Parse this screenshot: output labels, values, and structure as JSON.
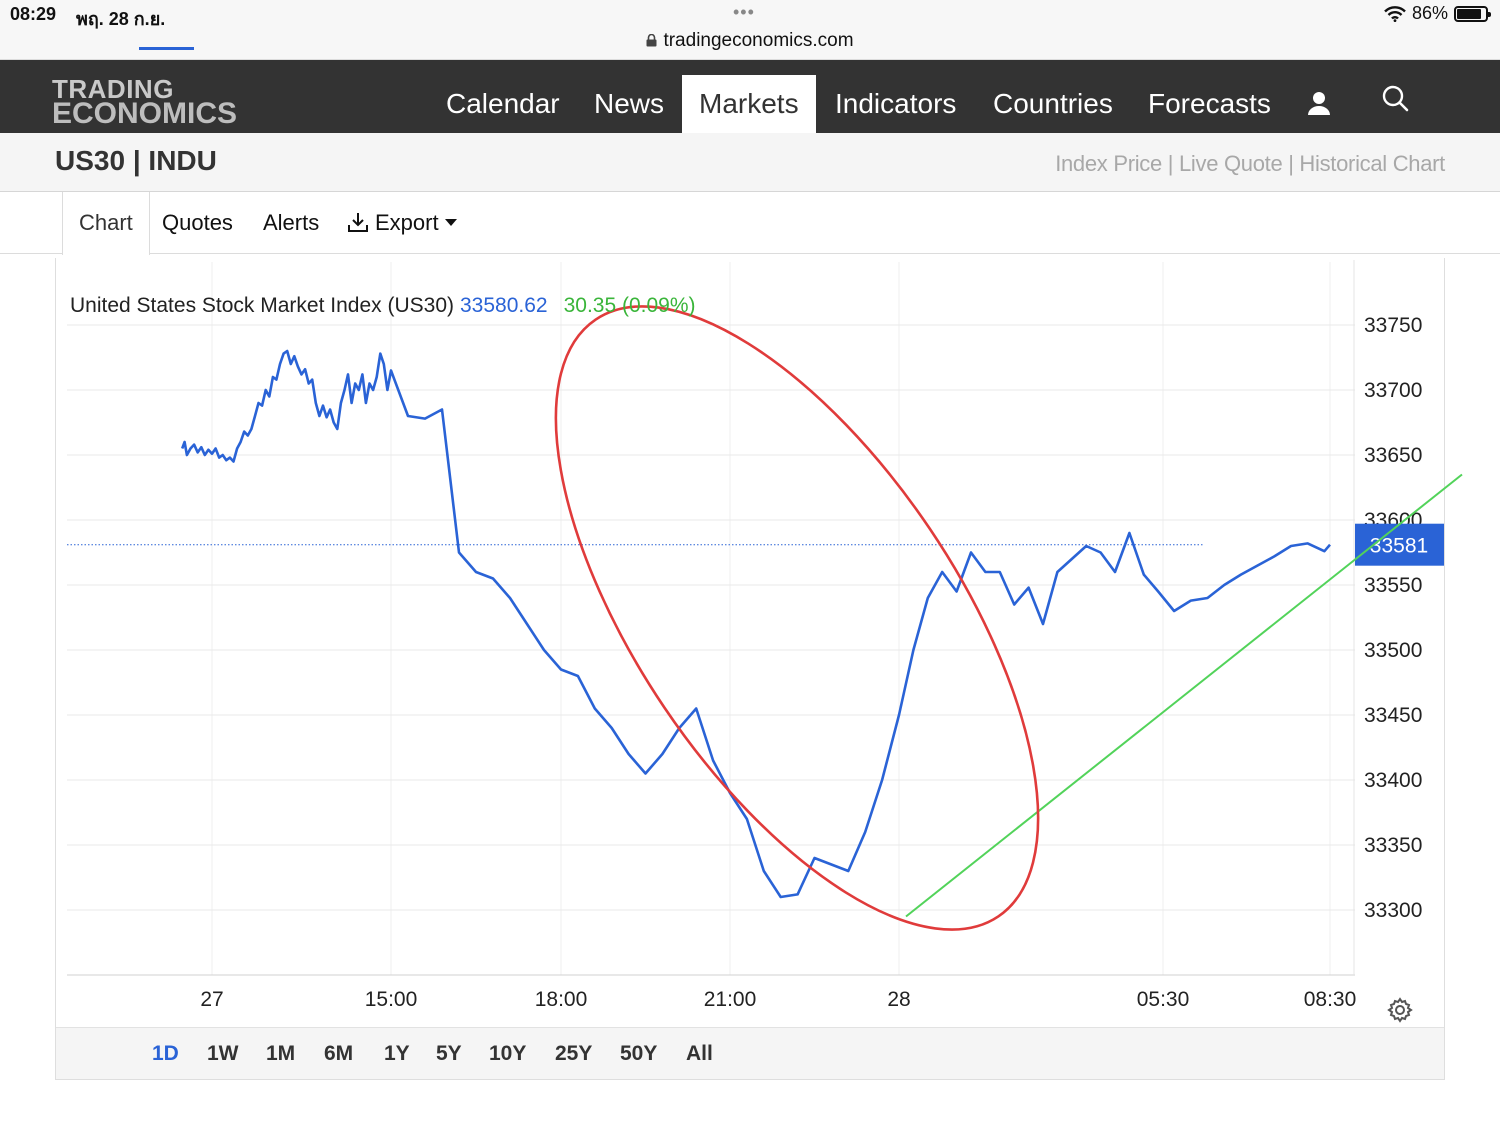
{
  "status_bar": {
    "time": "08:29",
    "date": "พฤ. 28 ก.ย.",
    "dots": "•••",
    "url": "tradingeconomics.com",
    "battery": "86%",
    "battery_level": 0.86
  },
  "nav": {
    "logo_line1": "TRADING",
    "logo_line2": "ECONOMICS",
    "items": [
      "Calendar",
      "News",
      "Markets",
      "Indicators",
      "Countries",
      "Forecasts"
    ],
    "active": "Markets",
    "user_icon": "user-icon",
    "search_icon": "search-icon"
  },
  "header": {
    "title": "US30 | INDU",
    "links": "Index Price | Live Quote | Historical Chart"
  },
  "tabs": {
    "chart": "Chart",
    "quotes": "Quotes",
    "alerts": "Alerts",
    "export": "Export"
  },
  "quote": {
    "name": "United States Stock Market Index (US30)",
    "price": "33580.62",
    "change": "30.35 (0.09%)"
  },
  "range": {
    "options": [
      "1D",
      "1W",
      "1M",
      "6M",
      "1Y",
      "5Y",
      "10Y",
      "25Y",
      "50Y",
      "All"
    ],
    "active": "1D"
  },
  "chart_data": {
    "type": "line",
    "title": "United States Stock Market Index (US30)",
    "x_tick_labels": [
      "27",
      "15:00",
      "18:00",
      "21:00",
      "28",
      "05:30",
      "08:30"
    ],
    "y_tick_labels": [
      33750,
      33700,
      33650,
      33600,
      33550,
      33500,
      33450,
      33400,
      33350,
      33300
    ],
    "ylim": [
      33260,
      33785
    ],
    "x_unit": "hours since 27 Sep 00:00 (axis ticks: 27=0, 15:00=15, 18:00=18, 21:00=21, 28=24, 05:30=29.5, 08:30=32.5)",
    "current_price_label": "33581",
    "current_price": 33581,
    "grid": true,
    "series": [
      {
        "name": "US30",
        "color": "#2a63d6",
        "x": [
          -2.5,
          -2.3,
          -2.1,
          -1.8,
          -1.5,
          -1.2,
          -0.9,
          -0.6,
          -0.3,
          0.0,
          0.3,
          0.6,
          0.9,
          1.2,
          1.5,
          1.8,
          2.1,
          2.4,
          2.7,
          3.0,
          3.3,
          3.6,
          3.9,
          4.2,
          4.5,
          4.8,
          5.1,
          5.4,
          5.7,
          6.0,
          6.3,
          6.6,
          6.9,
          7.2,
          7.5,
          7.8,
          8.1,
          8.4,
          8.7,
          9.0,
          9.3,
          9.6,
          9.9,
          10.2,
          10.5,
          10.8,
          11.1,
          11.4,
          11.7,
          12.0,
          12.3,
          12.6,
          12.9,
          13.2,
          13.5,
          13.8,
          14.1,
          14.4,
          14.7,
          15.0,
          15.3,
          15.6,
          15.9,
          16.2,
          16.5,
          16.8,
          17.1,
          17.4,
          17.7,
          18.0,
          18.3,
          18.6,
          18.9,
          19.2,
          19.5,
          19.8,
          20.1,
          20.4,
          20.7,
          21.0,
          21.3,
          21.6,
          21.9,
          22.2,
          22.5,
          22.8,
          23.1,
          23.4,
          23.7,
          24.0,
          24.3,
          24.6,
          24.9,
          25.2,
          25.5,
          25.8,
          26.1,
          26.4,
          26.7,
          27.0,
          27.3,
          27.6,
          27.9,
          28.2,
          28.5,
          28.8,
          29.1,
          29.4,
          29.7,
          30.0,
          30.3,
          30.6,
          30.9,
          31.2,
          31.5,
          31.8,
          32.1,
          32.4,
          32.5
        ],
        "values": [
          33655,
          33660,
          33650,
          33655,
          33658,
          33652,
          33656,
          33650,
          33654,
          33651,
          33655,
          33648,
          33650,
          33646,
          33648,
          33645,
          33655,
          33660,
          33668,
          33665,
          33670,
          33680,
          33690,
          33688,
          33700,
          33695,
          33710,
          33708,
          33720,
          33728,
          33730,
          33720,
          33726,
          33718,
          33712,
          33716,
          33705,
          33708,
          33690,
          33680,
          33688,
          33679,
          33685,
          33675,
          33670,
          33690,
          33700,
          33712,
          33690,
          33705,
          33700,
          33712,
          33690,
          33705,
          33700,
          33710,
          33728,
          33720,
          33700,
          33715,
          33680,
          33678,
          33685,
          33575,
          33560,
          33555,
          33540,
          33520,
          33500,
          33485,
          33480,
          33455,
          33440,
          33420,
          33405,
          33420,
          33440,
          33455,
          33415,
          33390,
          33370,
          33330,
          33310,
          33312,
          33340,
          33335,
          33330,
          33360,
          33400,
          33450,
          33500,
          33540,
          33560,
          33545,
          33575,
          33560,
          33560,
          33535,
          33548,
          33520,
          33560,
          33570,
          33580,
          33575,
          33560,
          33590,
          33558,
          33545,
          33530,
          33538,
          33540,
          33550,
          33558,
          33565,
          33572,
          33580,
          33582,
          33576,
          33581
        ]
      }
    ],
    "annotations": [
      {
        "type": "ellipse",
        "color": "#e03b3b",
        "description": "hand-drawn red ellipse around the drop"
      },
      {
        "type": "trendline",
        "color": "#52d35a",
        "description": "green support trendline"
      }
    ]
  }
}
